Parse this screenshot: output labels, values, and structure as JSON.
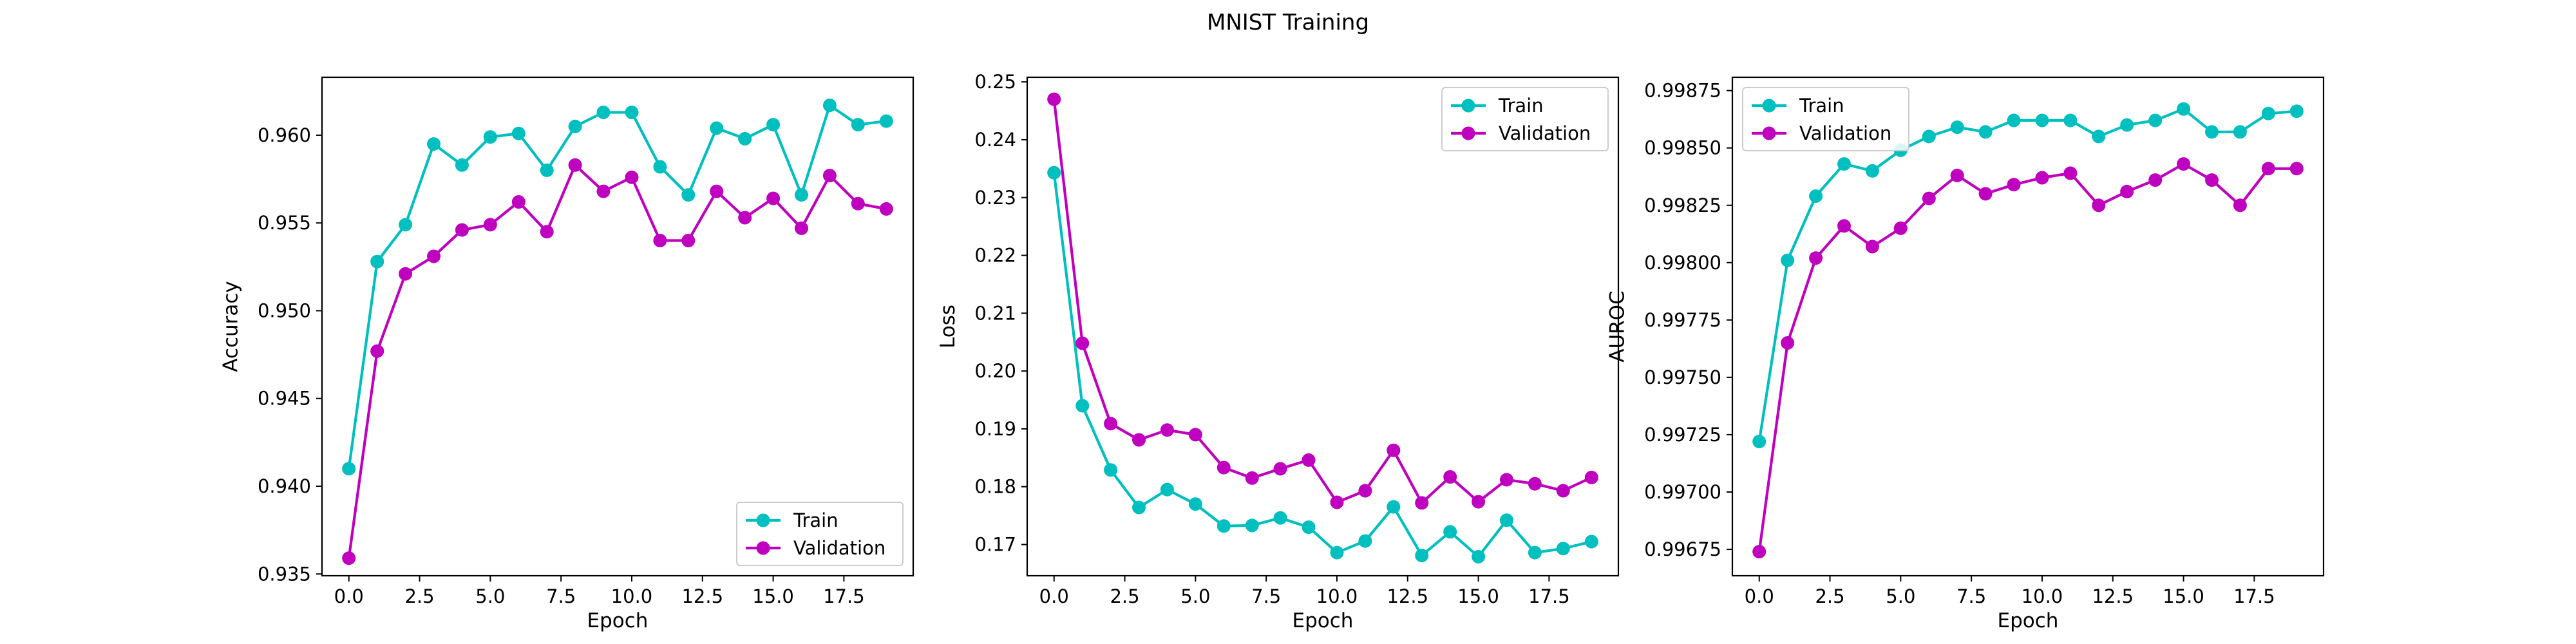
{
  "figure": {
    "title": "MNIST Training"
  },
  "colors": {
    "train": "#00bfbf",
    "validation": "#bf00bf"
  },
  "chart_data": [
    {
      "type": "line",
      "title": "",
      "xlabel": "Epoch",
      "ylabel": "Accuracy",
      "xlim": [
        -0.95,
        19.95
      ],
      "ylim": [
        0.9349,
        0.9633
      ],
      "xticks": [
        0,
        2.5,
        5,
        7.5,
        10,
        12.5,
        15,
        17.5
      ],
      "xtick_labels": [
        "0.0",
        "2.5",
        "5.0",
        "7.5",
        "10.0",
        "12.5",
        "15.0",
        "17.5"
      ],
      "yticks": [
        0.935,
        0.94,
        0.945,
        0.95,
        0.955,
        0.96
      ],
      "ytick_labels": [
        "0.935",
        "0.940",
        "0.945",
        "0.950",
        "0.955",
        "0.960"
      ],
      "legend_loc": "lower-right",
      "grid": false,
      "x": [
        0,
        1,
        2,
        3,
        4,
        5,
        6,
        7,
        8,
        9,
        10,
        11,
        12,
        13,
        14,
        15,
        16,
        17,
        18,
        19
      ],
      "series": [
        {
          "name": "Train",
          "color": "#00bfbf",
          "values": [
            0.941,
            0.9528,
            0.9549,
            0.9595,
            0.9583,
            0.9599,
            0.9601,
            0.958,
            0.9605,
            0.9613,
            0.9613,
            0.9582,
            0.9566,
            0.9604,
            0.9598,
            0.9606,
            0.9566,
            0.9617,
            0.9606,
            0.9608
          ]
        },
        {
          "name": "Validation",
          "color": "#bf00bf",
          "values": [
            0.9359,
            0.9477,
            0.9521,
            0.9531,
            0.9546,
            0.9549,
            0.9562,
            0.9545,
            0.9583,
            0.9568,
            0.9576,
            0.954,
            0.954,
            0.9568,
            0.9553,
            0.9564,
            0.9547,
            0.9577,
            0.9561,
            0.9558
          ]
        }
      ]
    },
    {
      "type": "line",
      "title": "",
      "xlabel": "Epoch",
      "ylabel": "Loss",
      "xlim": [
        -0.95,
        19.95
      ],
      "ylim": [
        0.1646,
        0.2508
      ],
      "xticks": [
        0,
        2.5,
        5,
        7.5,
        10,
        12.5,
        15,
        17.5
      ],
      "xtick_labels": [
        "0.0",
        "2.5",
        "5.0",
        "7.5",
        "10.0",
        "12.5",
        "15.0",
        "17.5"
      ],
      "yticks": [
        0.17,
        0.18,
        0.19,
        0.2,
        0.21,
        0.22,
        0.23,
        0.24,
        0.25
      ],
      "ytick_labels": [
        "0.17",
        "0.18",
        "0.19",
        "0.20",
        "0.21",
        "0.22",
        "0.23",
        "0.24",
        "0.25"
      ],
      "legend_loc": "upper-right",
      "grid": false,
      "x": [
        0,
        1,
        2,
        3,
        4,
        5,
        6,
        7,
        8,
        9,
        10,
        11,
        12,
        13,
        14,
        15,
        16,
        17,
        18,
        19
      ],
      "series": [
        {
          "name": "Train",
          "color": "#00bfbf",
          "values": [
            0.2343,
            0.194,
            0.1829,
            0.1764,
            0.1795,
            0.177,
            0.1732,
            0.1733,
            0.1746,
            0.173,
            0.1686,
            0.1706,
            0.1765,
            0.1681,
            0.1722,
            0.1679,
            0.1742,
            0.1686,
            0.1693,
            0.1705
          ]
        },
        {
          "name": "Validation",
          "color": "#bf00bf",
          "values": [
            0.247,
            0.2048,
            0.1909,
            0.1881,
            0.1898,
            0.189,
            0.1833,
            0.1815,
            0.1831,
            0.1846,
            0.1773,
            0.1793,
            0.1863,
            0.1772,
            0.1817,
            0.1774,
            0.1812,
            0.1805,
            0.1793,
            0.1816
          ]
        }
      ]
    },
    {
      "type": "line",
      "title": "",
      "xlabel": "Epoch",
      "ylabel": "AUROC",
      "xlim": [
        -0.95,
        19.95
      ],
      "ylim": [
        0.996635,
        0.998808
      ],
      "xticks": [
        0,
        2.5,
        5,
        7.5,
        10,
        12.5,
        15,
        17.5
      ],
      "xtick_labels": [
        "0.0",
        "2.5",
        "5.0",
        "7.5",
        "10.0",
        "12.5",
        "15.0",
        "17.5"
      ],
      "yticks": [
        0.99675,
        0.997,
        0.99725,
        0.9975,
        0.99775,
        0.998,
        0.99825,
        0.9985,
        0.99875
      ],
      "ytick_labels": [
        "0.99675",
        "0.99700",
        "0.99725",
        "0.99750",
        "0.99775",
        "0.99800",
        "0.99825",
        "0.99850",
        "0.99875"
      ],
      "legend_loc": "upper-left",
      "grid": false,
      "x": [
        0,
        1,
        2,
        3,
        4,
        5,
        6,
        7,
        8,
        9,
        10,
        11,
        12,
        13,
        14,
        15,
        16,
        17,
        18,
        19
      ],
      "series": [
        {
          "name": "Train",
          "color": "#00bfbf",
          "values": [
            0.99722,
            0.99801,
            0.99829,
            0.99843,
            0.9984,
            0.99849,
            0.99855,
            0.99859,
            0.99857,
            0.99862,
            0.99862,
            0.99862,
            0.99855,
            0.9986,
            0.99862,
            0.99867,
            0.99857,
            0.99857,
            0.99865,
            0.99866
          ]
        },
        {
          "name": "Validation",
          "color": "#bf00bf",
          "values": [
            0.99674,
            0.99765,
            0.99802,
            0.99816,
            0.99807,
            0.99815,
            0.99828,
            0.99838,
            0.9983,
            0.99834,
            0.99837,
            0.99839,
            0.99825,
            0.99831,
            0.99836,
            0.99843,
            0.99836,
            0.99825,
            0.99841,
            0.99841
          ]
        }
      ]
    }
  ]
}
